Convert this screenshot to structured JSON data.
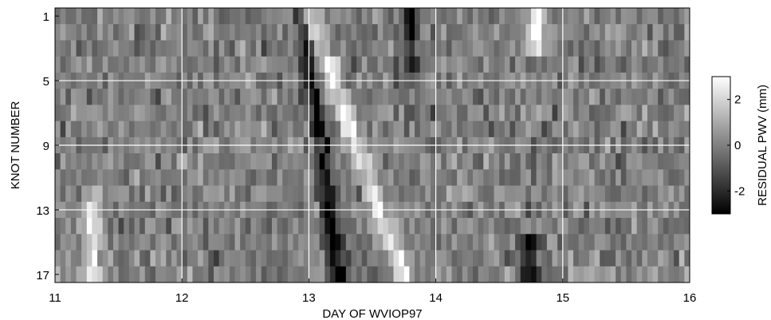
{
  "chart_data": {
    "type": "heatmap",
    "title": "",
    "xlabel": "DAY OF WVIOP97",
    "ylabel": "KNOT NUMBER",
    "colorbar_label": "RESIDUAL PWV (mm)",
    "xlim": [
      11,
      16
    ],
    "ylim": [
      1,
      17
    ],
    "x_ticks": [
      11,
      12,
      13,
      14,
      15,
      16
    ],
    "y_ticks": [
      1,
      5,
      9,
      13,
      17
    ],
    "colorbar_ticks": [
      -2,
      0,
      2
    ],
    "clim": [
      -3,
      3
    ],
    "colormap": "gray",
    "grid": true,
    "knots": 17,
    "time_step_days": 0.0417,
    "value_summary": "Residual PWV per knot (rows 1-17) every ~1 hour (columns) from day 11 to day 16; values mostly within about -3 to +3 mm.",
    "features": [
      {
        "description": "dark band of negative residuals",
        "day_at_knot_1": 12.95,
        "day_at_knot_17": 13.25,
        "sign": "negative"
      },
      {
        "description": "bright band of positive residuals",
        "day_at_knot_1": 13.0,
        "day_at_knot_17": 13.75,
        "sign": "positive"
      },
      {
        "description": "dark cluster",
        "day_center": 13.8,
        "knots": [
          1,
          4
        ],
        "sign": "negative"
      },
      {
        "description": "bright cluster",
        "day_center": 14.8,
        "knots": [
          1,
          3
        ],
        "sign": "positive"
      },
      {
        "description": "dark cluster",
        "day_center": 14.75,
        "knots": [
          15,
          17
        ],
        "sign": "negative"
      },
      {
        "description": "bright streaks",
        "day_center": 11.3,
        "knots": [
          12,
          17
        ],
        "sign": "positive"
      }
    ]
  }
}
